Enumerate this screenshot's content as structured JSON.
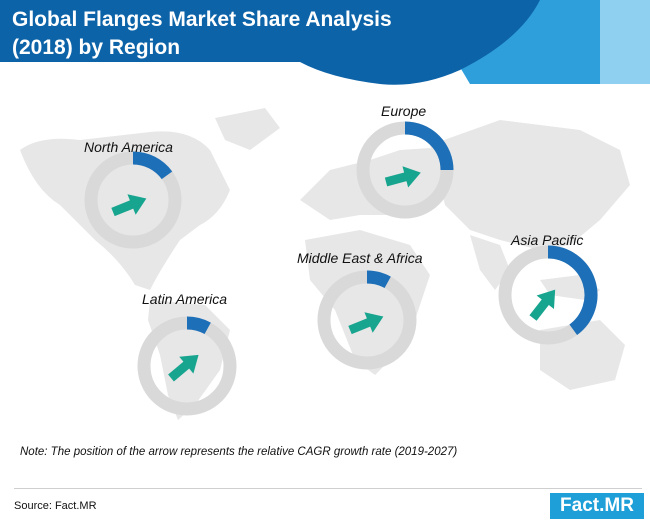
{
  "header": {
    "title_line1": "Global Flanges Market Share Analysis",
    "title_line2": "(2018) by Region",
    "colors": {
      "dark": "#0d63a8",
      "mid": "#2f9fdc",
      "light": "#8fd0f0"
    }
  },
  "chart_data": {
    "type": "donut-map",
    "title": "Global Flanges Market Share Analysis (2018) by Region",
    "series_note": "Blue arc = market share; arrow position = relative CAGR growth rate (2019-2027)",
    "regions": [
      {
        "name": "North America",
        "share_pct": 15,
        "cagr_rank": "medium"
      },
      {
        "name": "Europe",
        "share_pct": 25,
        "cagr_rank": "medium"
      },
      {
        "name": "Middle East & Africa",
        "share_pct": 8,
        "cagr_rank": "medium"
      },
      {
        "name": "Latin America",
        "share_pct": 8,
        "cagr_rank": "medium-high"
      },
      {
        "name": "Asia Pacific",
        "share_pct": 40,
        "cagr_rank": "high"
      }
    ],
    "colors": {
      "share": "#1d6fb8",
      "ring": "#d9d9d9",
      "arrow": "#18a58f",
      "map": "#e7e7e7"
    }
  },
  "footer": {
    "note": "Note: The position of the arrow represents the relative CAGR growth rate (2019-2027)",
    "source": "Source: Fact.MR",
    "logo": "Fact.MR"
  }
}
